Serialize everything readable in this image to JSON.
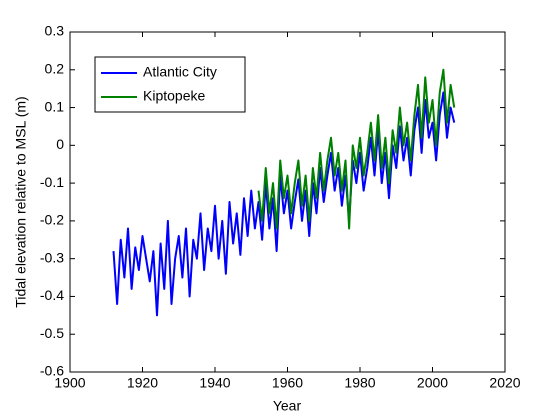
{
  "chart_data": {
    "type": "line",
    "xlabel": "Year",
    "ylabel": "Tidal elevation relative to MSL (m)",
    "x": [
      1912,
      1913,
      1914,
      1915,
      1916,
      1917,
      1918,
      1919,
      1920,
      1921,
      1922,
      1923,
      1924,
      1925,
      1926,
      1927,
      1928,
      1929,
      1930,
      1931,
      1932,
      1933,
      1934,
      1935,
      1936,
      1937,
      1938,
      1939,
      1940,
      1941,
      1942,
      1943,
      1944,
      1945,
      1946,
      1947,
      1948,
      1949,
      1950,
      1951,
      1952,
      1953,
      1954,
      1955,
      1956,
      1957,
      1958,
      1959,
      1960,
      1961,
      1962,
      1963,
      1964,
      1965,
      1966,
      1967,
      1968,
      1969,
      1970,
      1971,
      1972,
      1973,
      1974,
      1975,
      1976,
      1977,
      1978,
      1979,
      1980,
      1981,
      1982,
      1983,
      1984,
      1985,
      1986,
      1987,
      1988,
      1989,
      1990,
      1991,
      1992,
      1993,
      1994,
      1995,
      1996,
      1997,
      1998,
      1999,
      2000,
      2001,
      2002,
      2003,
      2004,
      2005,
      2006
    ],
    "series": [
      {
        "name": "Atlantic City",
        "color": "#0000ff",
        "values": [
          -0.28,
          -0.42,
          -0.25,
          -0.35,
          -0.22,
          -0.38,
          -0.27,
          -0.33,
          -0.24,
          -0.3,
          -0.36,
          -0.28,
          -0.45,
          -0.26,
          -0.38,
          -0.2,
          -0.42,
          -0.3,
          -0.24,
          -0.35,
          -0.22,
          -0.4,
          -0.25,
          -0.3,
          -0.18,
          -0.33,
          -0.22,
          -0.28,
          -0.16,
          -0.3,
          -0.2,
          -0.34,
          -0.15,
          -0.26,
          -0.18,
          -0.29,
          -0.14,
          -0.24,
          -0.12,
          -0.22,
          -0.15,
          -0.25,
          -0.1,
          -0.22,
          -0.14,
          -0.28,
          -0.08,
          -0.18,
          -0.12,
          -0.22,
          -0.15,
          -0.09,
          -0.2,
          -0.12,
          -0.24,
          -0.1,
          -0.18,
          -0.06,
          -0.15,
          -0.08,
          -0.02,
          -0.12,
          -0.06,
          -0.16,
          -0.08,
          -0.2,
          -0.04,
          -0.1,
          -0.02,
          -0.12,
          -0.06,
          0.02,
          -0.08,
          0.04,
          -0.1,
          -0.02,
          -0.14,
          0.0,
          -0.06,
          0.05,
          -0.04,
          0.02,
          -0.08,
          0.04,
          0.1,
          -0.02,
          0.12,
          0.02,
          0.06,
          -0.04,
          0.08,
          0.14,
          0.02,
          0.1,
          0.06
        ]
      },
      {
        "name": "Kiptopeke",
        "color": "#008000",
        "values": [
          null,
          null,
          null,
          null,
          null,
          null,
          null,
          null,
          null,
          null,
          null,
          null,
          null,
          null,
          null,
          null,
          null,
          null,
          null,
          null,
          null,
          null,
          null,
          null,
          null,
          null,
          null,
          null,
          null,
          null,
          null,
          null,
          null,
          null,
          null,
          null,
          null,
          null,
          null,
          null,
          -0.12,
          -0.2,
          -0.06,
          -0.18,
          -0.1,
          -0.22,
          -0.04,
          -0.14,
          -0.08,
          -0.18,
          -0.1,
          -0.04,
          -0.16,
          -0.08,
          -0.2,
          -0.06,
          -0.14,
          -0.02,
          -0.12,
          -0.04,
          0.02,
          -0.08,
          -0.02,
          -0.12,
          -0.04,
          -0.22,
          0.0,
          -0.06,
          0.02,
          -0.08,
          -0.02,
          0.06,
          -0.04,
          0.08,
          -0.06,
          0.02,
          -0.1,
          0.04,
          -0.02,
          0.1,
          0.0,
          0.06,
          -0.04,
          0.08,
          0.16,
          0.02,
          0.18,
          0.06,
          0.12,
          0.0,
          0.14,
          0.2,
          0.06,
          0.16,
          0.1
        ]
      }
    ],
    "xlim": [
      1900,
      2020
    ],
    "xticks": [
      1900,
      1920,
      1940,
      1960,
      1980,
      2000,
      2020
    ],
    "ylim": [
      -0.6,
      0.3
    ],
    "yticks": [
      -0.6,
      -0.5,
      -0.4,
      -0.3,
      -0.2,
      -0.1,
      0,
      0.1,
      0.2,
      0.3
    ],
    "legend": "northwest"
  }
}
